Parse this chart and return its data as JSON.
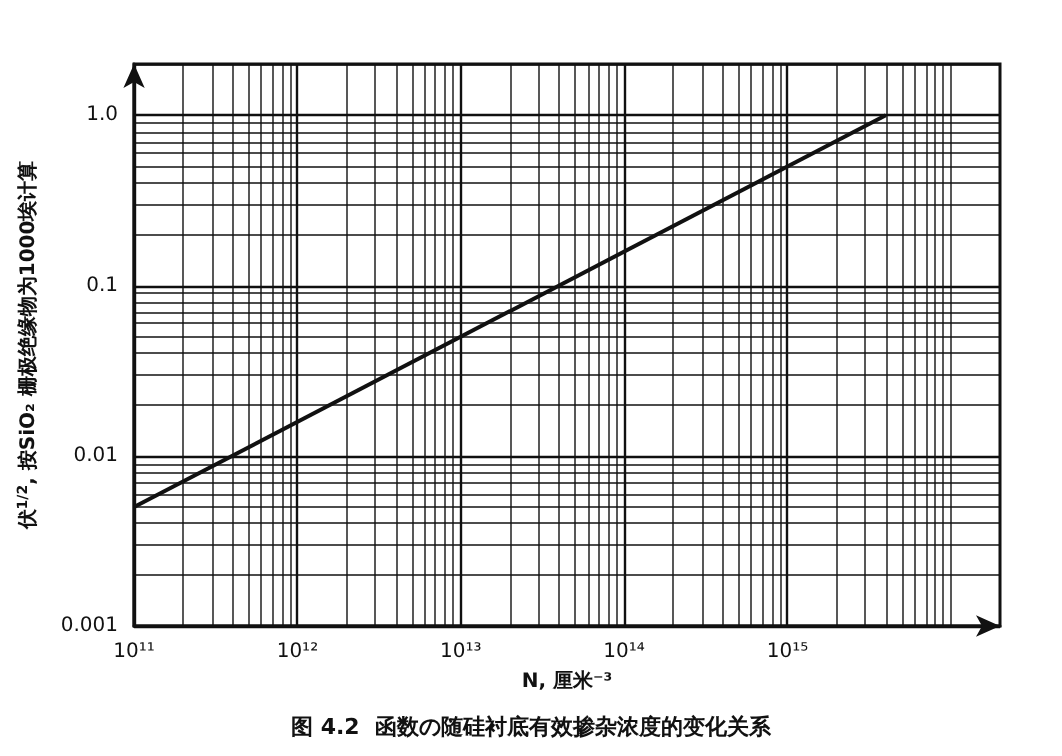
{
  "chart_data": {
    "type": "line",
    "title": "图 4.2  函数の随硅衬底有效掺杂浓度的变化关系",
    "xlabel": "N, 厘米⁻³",
    "ylabel": "伏$^{1/2}$, 按SiO₂ 栅极绝缘物为1000埃计算",
    "x": [
      100000000000.0,
      4000000000000000.0
    ],
    "series": [
      {
        "color": "#111111",
        "values": [
          0.005,
          1.0
        ]
      }
    ],
    "log": "xy",
    "grid": true,
    "marker": "none",
    "line_style": "solid",
    "xlim": [
      100000000000.0,
      2e+16
    ],
    "xticks": [
      {
        "value": 100000000000.0,
        "label": "10¹¹"
      },
      {
        "value": 1000000000000.0,
        "label": "10¹²"
      },
      {
        "value": 10000000000000.0,
        "label": "10¹³"
      },
      {
        "value": 100000000000000.0,
        "label": "10¹⁴"
      },
      {
        "value": 1000000000000000.0,
        "label": "10¹⁵"
      }
    ],
    "ylim": [
      0.001,
      2
    ],
    "yticks": [
      0.001,
      0.01,
      0.1,
      {
        "value": 1,
        "label": "1.0"
      }
    ]
  }
}
